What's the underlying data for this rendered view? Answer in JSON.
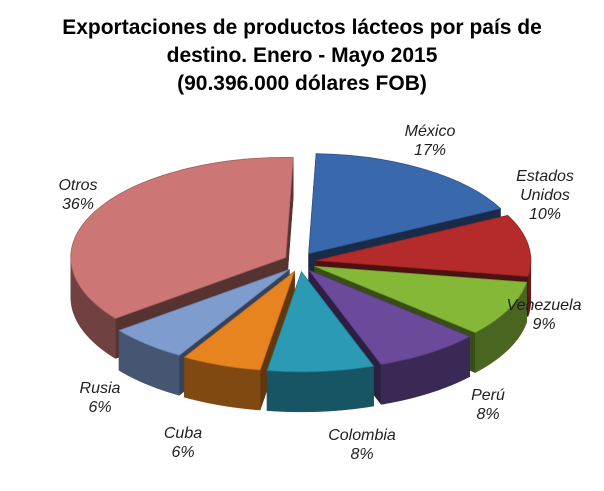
{
  "chart_data": {
    "type": "pie",
    "title_lines": [
      "Exportaciones de productos lácteos por país de",
      "destino. Enero - Mayo 2015",
      "(90.396.000  dólares FOB)"
    ],
    "slices": [
      {
        "label_lines": [
          "México"
        ],
        "value": 17,
        "value_label": "17%",
        "color": "#3a68ad"
      },
      {
        "label_lines": [
          "Estados",
          "Unidos"
        ],
        "value": 10,
        "value_label": "10%",
        "color": "#b52a2a"
      },
      {
        "label_lines": [
          "Venezuela"
        ],
        "value": 9,
        "value_label": "9%",
        "color": "#86b838"
      },
      {
        "label_lines": [
          "Perú"
        ],
        "value": 8,
        "value_label": "8%",
        "color": "#6b4a9b"
      },
      {
        "label_lines": [
          "Colombia"
        ],
        "value": 8,
        "value_label": "8%",
        "color": "#2a9ab5"
      },
      {
        "label_lines": [
          "Cuba"
        ],
        "value": 6,
        "value_label": "6%",
        "color": "#e8841f"
      },
      {
        "label_lines": [
          "Rusia"
        ],
        "value": 6,
        "value_label": "6%",
        "color": "#7f9ccf"
      },
      {
        "label_lines": [
          "Otros"
        ],
        "value": 36,
        "value_label": "36%",
        "color": "#cc7775"
      }
    ],
    "exploded": true,
    "three_d": true,
    "legend": "none"
  }
}
